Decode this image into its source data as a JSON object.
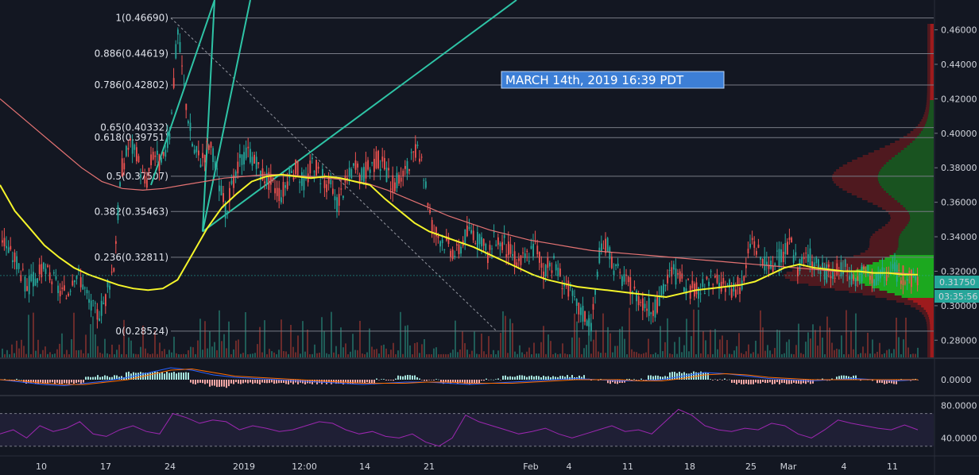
{
  "chart_data": {
    "type": "line",
    "annotation": "MARCH 14th, 2019 16:39 PDT",
    "price": {
      "ylim": [
        0.27,
        0.475
      ],
      "y_ticks": [
        "0.46000",
        "0.44000",
        "0.42000",
        "0.40000",
        "0.38000",
        "0.36000",
        "0.34000",
        "0.32000",
        "0.30000",
        "0.28000"
      ],
      "y_tick_values": [
        0.46,
        0.44,
        0.42,
        0.4,
        0.38,
        0.36,
        0.34,
        0.32,
        0.3,
        0.28
      ],
      "last_price_label": "0.31750",
      "last_price": 0.3175,
      "countdown_label": "03:35:56",
      "fib_levels": [
        {
          "label": "1(0.46690)",
          "value": 0.4669
        },
        {
          "label": "0.886(0.44619)",
          "value": 0.44619
        },
        {
          "label": "0.786(0.42802)",
          "value": 0.42802
        },
        {
          "label": "0.65(0.40332)",
          "value": 0.40332
        },
        {
          "label": "0.618(0.39751)",
          "value": 0.39751
        },
        {
          "label": "0.5(0.37507)",
          "value": 0.37507
        },
        {
          "label": "0.382(0.35463)",
          "value": 0.35463
        },
        {
          "label": "0.236(0.32811)",
          "value": 0.32811
        },
        {
          "label": "0(0.28524)",
          "value": 0.28524
        }
      ],
      "close_series": [
        0.34,
        0.33,
        0.325,
        0.31,
        0.315,
        0.32,
        0.318,
        0.31,
        0.305,
        0.32,
        0.315,
        0.3,
        0.295,
        0.305,
        0.325,
        0.38,
        0.395,
        0.385,
        0.37,
        0.39,
        0.38,
        0.4,
        0.46,
        0.42,
        0.39,
        0.385,
        0.395,
        0.375,
        0.355,
        0.37,
        0.385,
        0.39,
        0.38,
        0.375,
        0.37,
        0.365,
        0.375,
        0.38,
        0.37,
        0.385,
        0.375,
        0.37,
        0.36,
        0.37,
        0.38,
        0.375,
        0.38,
        0.385,
        0.38,
        0.37,
        0.375,
        0.38,
        0.39,
        0.375,
        0.345,
        0.34,
        0.335,
        0.33,
        0.34,
        0.345,
        0.335,
        0.33,
        0.34,
        0.335,
        0.33,
        0.325,
        0.33,
        0.335,
        0.32,
        0.325,
        0.318,
        0.31,
        0.3,
        0.295,
        0.29,
        0.33,
        0.335,
        0.32,
        0.315,
        0.31,
        0.305,
        0.3,
        0.298,
        0.31,
        0.32,
        0.315,
        0.31,
        0.308,
        0.31,
        0.315,
        0.312,
        0.31,
        0.31,
        0.312,
        0.34,
        0.33,
        0.32,
        0.325,
        0.33,
        0.335,
        0.32,
        0.33,
        0.325,
        0.32,
        0.318,
        0.32,
        0.322,
        0.315,
        0.32,
        0.318,
        0.315,
        0.318,
        0.32,
        0.318,
        0.316,
        0.3175
      ],
      "ma_yellow": [
        0.37,
        0.355,
        0.345,
        0.335,
        0.328,
        0.322,
        0.318,
        0.315,
        0.312,
        0.31,
        0.309,
        0.31,
        0.315,
        0.33,
        0.345,
        0.357,
        0.365,
        0.372,
        0.375,
        0.376,
        0.375,
        0.374,
        0.375,
        0.374,
        0.372,
        0.37,
        0.362,
        0.355,
        0.348,
        0.343,
        0.34,
        0.337,
        0.334,
        0.33,
        0.326,
        0.322,
        0.318,
        0.315,
        0.313,
        0.311,
        0.31,
        0.309,
        0.308,
        0.307,
        0.306,
        0.305,
        0.307,
        0.309,
        0.31,
        0.311,
        0.312,
        0.314,
        0.318,
        0.322,
        0.324,
        0.322,
        0.321,
        0.32,
        0.32,
        0.319,
        0.319,
        0.318,
        0.318
      ],
      "ma_red": [
        0.42,
        0.41,
        0.4,
        0.39,
        0.38,
        0.372,
        0.368,
        0.367,
        0.368,
        0.37,
        0.372,
        0.374,
        0.375,
        0.376,
        0.376,
        0.375,
        0.374,
        0.373,
        0.371,
        0.367,
        0.362,
        0.357,
        0.352,
        0.348,
        0.344,
        0.341,
        0.338,
        0.336,
        0.334,
        0.332,
        0.331,
        0.33,
        0.329,
        0.328,
        0.327,
        0.326,
        0.325,
        0.324,
        0.323,
        0.322,
        0.321,
        0.32,
        0.32,
        0.319,
        0.319,
        0.318
      ]
    },
    "macd": {
      "y_ticks": [
        "0.0000"
      ],
      "macd_line": [
        0.0,
        -0.002,
        -0.004,
        -0.005,
        -0.003,
        -0.001,
        0.002,
        0.006,
        0.01,
        0.008,
        0.004,
        0.002,
        0.001,
        0.0,
        -0.001,
        -0.002,
        -0.003,
        -0.004,
        -0.003,
        -0.002,
        -0.002,
        -0.003,
        -0.004,
        -0.003,
        -0.002,
        -0.001,
        0.0,
        0.001,
        0.0,
        -0.001,
        -0.001,
        0.0,
        0.003,
        0.006,
        0.005,
        0.003,
        0.001,
        0.0,
        -0.001,
        0.0,
        0.001,
        0.0,
        -0.001,
        0.0
      ],
      "signal_line": [
        0.0,
        -0.001,
        -0.003,
        -0.004,
        -0.004,
        -0.002,
        0.0,
        0.004,
        0.008,
        0.009,
        0.006,
        0.003,
        0.002,
        0.001,
        0.0,
        -0.001,
        -0.002,
        -0.003,
        -0.003,
        -0.003,
        -0.002,
        -0.002,
        -0.003,
        -0.003,
        -0.003,
        -0.002,
        -0.001,
        0.0,
        0.0,
        0.0,
        -0.001,
        -0.001,
        0.001,
        0.004,
        0.005,
        0.004,
        0.002,
        0.001,
        0.0,
        0.0,
        0.0,
        0.0,
        0.0,
        0.0
      ]
    },
    "rsi": {
      "y_ticks": [
        "80.0000",
        "40.0000"
      ],
      "y_tick_values": [
        80,
        40
      ],
      "ylim": [
        20,
        90
      ],
      "bands": [
        70,
        30
      ],
      "values": [
        45,
        50,
        40,
        55,
        48,
        52,
        60,
        45,
        42,
        50,
        55,
        48,
        45,
        70,
        65,
        58,
        62,
        60,
        50,
        55,
        52,
        48,
        50,
        55,
        60,
        58,
        50,
        45,
        48,
        42,
        40,
        45,
        35,
        30,
        40,
        68,
        60,
        55,
        50,
        45,
        48,
        52,
        45,
        40,
        45,
        50,
        55,
        48,
        50,
        45,
        60,
        75,
        68,
        55,
        50,
        48,
        52,
        50,
        58,
        55,
        45,
        40,
        50,
        62,
        58,
        55,
        52,
        50,
        56,
        50
      ]
    },
    "x_ticks": [
      "10",
      "17",
      "24",
      "2019",
      "12:00",
      "14",
      "21",
      "Feb",
      "4",
      "11",
      "18",
      "25",
      "Mar",
      "4",
      "11"
    ]
  },
  "colors": {
    "background": "#131722",
    "up": "#26a69a",
    "down": "#ef5350",
    "ma_yellow": "#f5f52a",
    "ma_red": "#e57373",
    "fib_line": "#787b86",
    "fan": "#2ec4a6",
    "annotation_bg": "#3d7fd6",
    "rsi": "#9c27b0",
    "last_price_bg": "#26a69a"
  }
}
